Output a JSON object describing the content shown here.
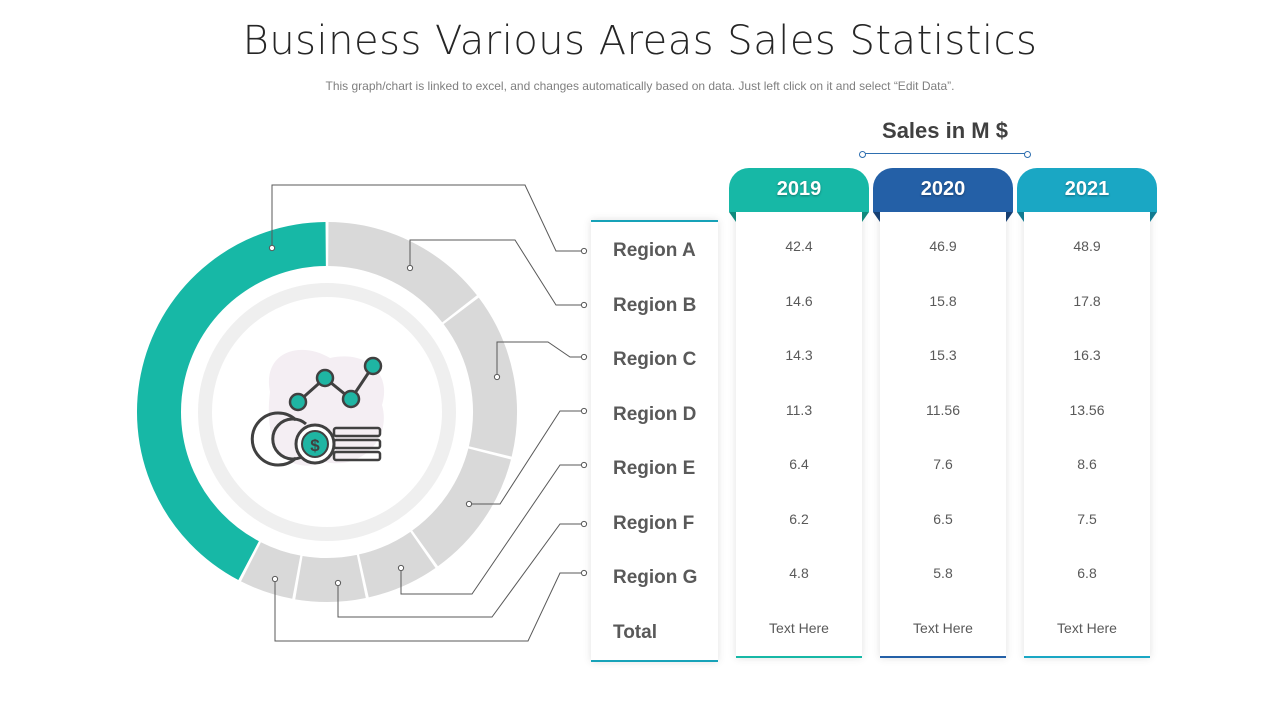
{
  "title": "Business Various Areas Sales Statistics",
  "subtitle": "This graph/chart is linked to excel, and changes automatically based on data. Just left click on it and select “Edit Data”.",
  "sales_heading": "Sales in M $",
  "colors": {
    "teal": "#17b8a6",
    "navy": "#2460a7",
    "cyan": "#1aa7c4",
    "gray_segment": "#d9d9d9",
    "text": "#595959"
  },
  "center_icon": "money-growth-chart-icon",
  "row_labels": [
    "Region A",
    "Region B",
    "Region C",
    "Region D",
    "Region E",
    "Region F",
    "Region G",
    "Total"
  ],
  "chart_data": {
    "type": "table",
    "series": [
      {
        "name": "2019",
        "values": [
          "42.4",
          "14.6",
          "14.3",
          "11.3",
          "6.4",
          "6.2",
          "4.8",
          "Text Here"
        ]
      },
      {
        "name": "2020",
        "values": [
          "46.9",
          "15.8",
          "15.3",
          "11.56",
          "7.6",
          "6.5",
          "5.8",
          "Text Here"
        ]
      },
      {
        "name": "2021",
        "values": [
          "48.9",
          "17.8",
          "16.3",
          "13.56",
          "8.6",
          "7.5",
          "6.8",
          "Text Here"
        ]
      }
    ],
    "donut": {
      "type": "pie",
      "categories": [
        "Region A",
        "Region B",
        "Region C",
        "Region D",
        "Region E",
        "Region F",
        "Region G"
      ],
      "values": [
        42.4,
        14.6,
        14.3,
        11.3,
        6.4,
        6.2,
        4.8
      ],
      "highlighted": "Region A"
    }
  }
}
